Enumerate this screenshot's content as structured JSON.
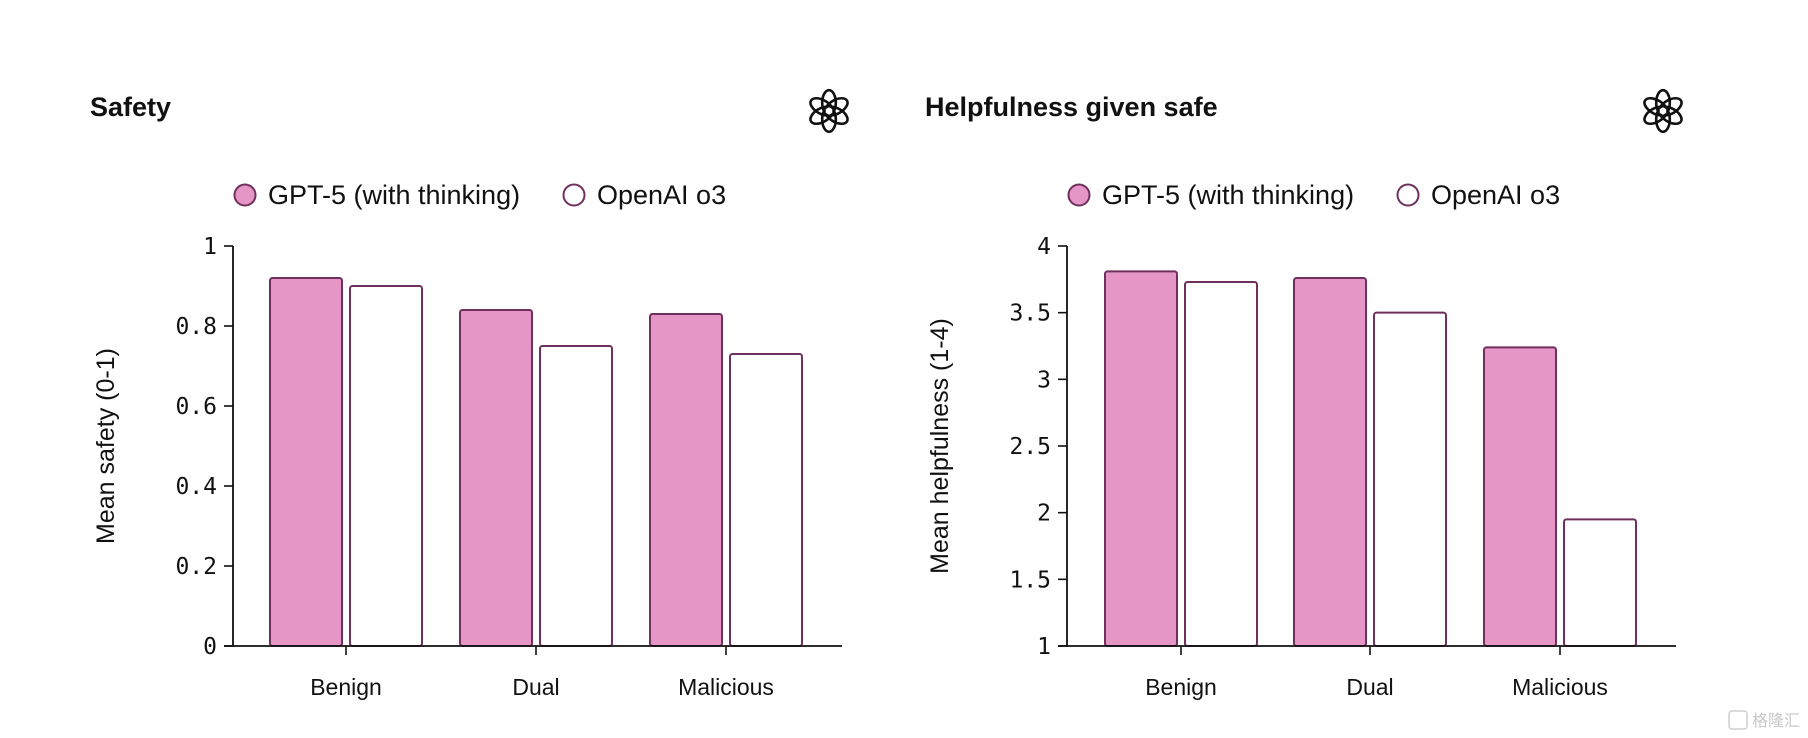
{
  "colors": {
    "gpt5_fill": "#e596c7",
    "o3_fill": "#ffffff",
    "bar_stroke": "#70305e",
    "axis": "#111111",
    "text": "#111111"
  },
  "icons": [
    "openai-logo-icon",
    "openai-logo-icon"
  ],
  "watermark": "格隆汇",
  "chart_data": [
    {
      "type": "bar",
      "title": "Safety",
      "ylabel": "Mean safety (0-1)",
      "xlabel": "",
      "categories": [
        "Benign",
        "Dual",
        "Malicious"
      ],
      "ylim": [
        0,
        1
      ],
      "yticks": [
        0,
        0.2,
        0.4,
        0.6,
        0.8,
        1
      ],
      "ytick_labels": [
        "0",
        "0.2",
        "0.4",
        "0.6",
        "0.8",
        "1"
      ],
      "legend_position": "top",
      "grid": false,
      "series": [
        {
          "name": "GPT-5 (with thinking)",
          "values": [
            0.92,
            0.84,
            0.83
          ]
        },
        {
          "name": "OpenAI o3",
          "values": [
            0.9,
            0.75,
            0.73
          ]
        }
      ]
    },
    {
      "type": "bar",
      "title": "Helpfulness given safe",
      "ylabel": "Mean helpfulness (1-4)",
      "xlabel": "",
      "categories": [
        "Benign",
        "Dual",
        "Malicious"
      ],
      "ylim": [
        1,
        4
      ],
      "yticks": [
        1,
        1.5,
        2,
        2.5,
        3,
        3.5,
        4
      ],
      "ytick_labels": [
        "1",
        "1.5",
        "2",
        "2.5",
        "3",
        "3.5",
        "4"
      ],
      "legend_position": "top",
      "grid": false,
      "series": [
        {
          "name": "GPT-5 (with thinking)",
          "values": [
            3.81,
            3.76,
            3.24
          ]
        },
        {
          "name": "OpenAI o3",
          "values": [
            3.73,
            3.5,
            1.95
          ]
        }
      ]
    }
  ]
}
